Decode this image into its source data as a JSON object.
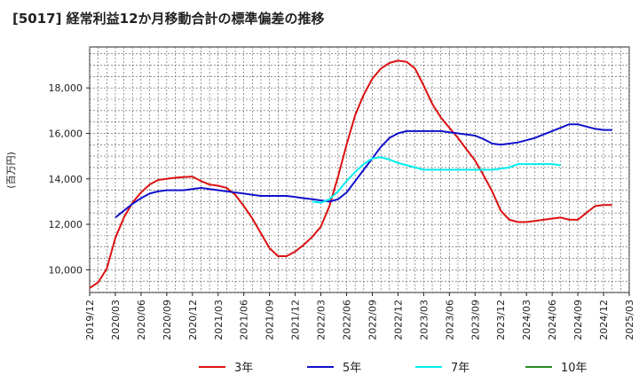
{
  "chart_data": {
    "type": "line",
    "title": "[5017]  経常利益12か月移動合計の標準偏差の推移",
    "ylabel": "(百万円)",
    "xlabel": "",
    "ylim": [
      9000,
      19800
    ],
    "yticks": [
      10000,
      12000,
      14000,
      16000,
      18000
    ],
    "ytick_labels": [
      "10,000",
      "12,000",
      "14,000",
      "16,000",
      "18,000"
    ],
    "xlim": [
      "2019-12",
      "2025-03"
    ],
    "xtick_labels": [
      "2019/12",
      "2020/03",
      "2020/06",
      "2020/09",
      "2020/12",
      "2021/03",
      "2021/06",
      "2021/09",
      "2021/12",
      "2022/03",
      "2022/06",
      "2022/09",
      "2022/12",
      "2023/03",
      "2023/06",
      "2023/09",
      "2023/12",
      "2024/03",
      "2024/06",
      "2024/09",
      "2024/12",
      "2025/03"
    ],
    "grid": true,
    "legend": "bottom",
    "series": [
      {
        "name": "3年",
        "color": "#dd1111",
        "start": "2019-12",
        "values": [
          9200,
          9450,
          10050,
          11400,
          12300,
          12950,
          13400,
          13750,
          13950,
          14000,
          14050,
          14080,
          14100,
          13900,
          13750,
          13700,
          13600,
          13300,
          12800,
          12250,
          11600,
          10950,
          10600,
          10600,
          10800,
          11100,
          11450,
          11900,
          12800,
          14100,
          15500,
          16800,
          17700,
          18400,
          18850,
          19100,
          19200,
          19150,
          18850,
          18100,
          17300,
          16700,
          16250,
          15800,
          15300,
          14800,
          14150,
          13450,
          12600,
          12200,
          12100,
          12100,
          12150,
          12200,
          12250,
          12300,
          12200,
          12200,
          12500,
          12800,
          12850,
          12850
        ]
      },
      {
        "name": "5年",
        "color": "#1111cc",
        "start": "2020-03",
        "values": [
          12300,
          12600,
          12900,
          13150,
          13350,
          13450,
          13500,
          13500,
          13500,
          13550,
          13600,
          13550,
          13500,
          13450,
          13400,
          13350,
          13300,
          13250,
          13250,
          13250,
          13250,
          13200,
          13150,
          13100,
          13050,
          13000,
          13100,
          13400,
          13900,
          14400,
          14900,
          15400,
          15800,
          16000,
          16100,
          16100,
          16100,
          16100,
          16100,
          16050,
          16000,
          15950,
          15900,
          15750,
          15550,
          15500,
          15550,
          15600,
          15700,
          15800,
          15950,
          16100,
          16250,
          16400,
          16400,
          16300,
          16200,
          16150,
          16150
        ]
      },
      {
        "name": "7年",
        "color": "#00eeee",
        "start": "2022-02",
        "values": [
          13000,
          12950,
          13100,
          13450,
          13900,
          14300,
          14650,
          14900,
          14950,
          14850,
          14700,
          14600,
          14500,
          14400,
          14400,
          14400,
          14400,
          14400,
          14400,
          14400,
          14400,
          14400,
          14450,
          14500,
          14650,
          14650,
          14650,
          14650,
          14650,
          14600
        ]
      },
      {
        "name": "10年",
        "color": "#228822",
        "start": "2025-03",
        "values": []
      }
    ]
  }
}
